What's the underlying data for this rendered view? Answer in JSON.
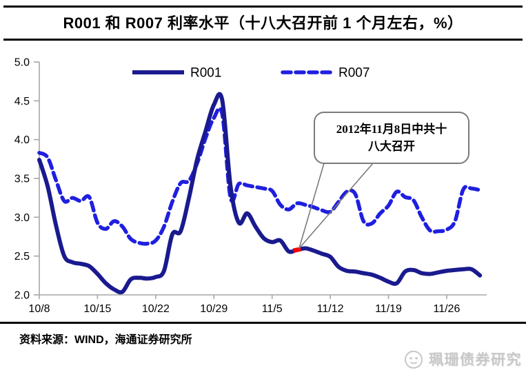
{
  "title": "R001 和 R007 利率水平（十八大召开前 1 个月左右，%）",
  "source_note": "资料来源：WIND，海通证券研究所",
  "watermark_text": "珮珊债券研究",
  "colors": {
    "r001_line": "#1a1a8f",
    "r007_line": "#1f1fe0",
    "highlight_red": "#ff0000",
    "axis_gray": "#a6a6a6",
    "callout_gray": "#7a7a7a",
    "watermark_gray": "#c8c8c8"
  },
  "chart_data": {
    "type": "line",
    "title": "R001 和 R007 利率水平（十八大召开前 1 个月左右，%）",
    "xlabel": "",
    "ylabel": "",
    "ylim": [
      2.0,
      5.0
    ],
    "y_ticks": [
      2.0,
      2.5,
      3.0,
      3.5,
      4.0,
      4.5,
      5.0
    ],
    "y_tick_labels": [
      "2.0",
      "2.5",
      "3.0",
      "3.5",
      "4.0",
      "4.5",
      "5.0"
    ],
    "x_tick_labels": [
      "10/8",
      "10/15",
      "10/22",
      "10/29",
      "11/5",
      "11/12",
      "11/19",
      "11/26"
    ],
    "x_tick_days": [
      0,
      7,
      14,
      21,
      28,
      35,
      42,
      49
    ],
    "grid": false,
    "legend_position": "top-inside",
    "dates": [
      "10/8",
      "10/9",
      "10/10",
      "10/11",
      "10/12",
      "10/13",
      "10/14",
      "10/15",
      "10/16",
      "10/17",
      "10/18",
      "10/19",
      "10/20",
      "10/21",
      "10/22",
      "10/23",
      "10/24",
      "10/25",
      "10/26",
      "10/27",
      "10/28",
      "10/29",
      "10/30",
      "10/31",
      "11/1",
      "11/2",
      "11/3",
      "11/4",
      "11/5",
      "11/6",
      "11/7",
      "11/8",
      "11/9",
      "11/10",
      "11/11",
      "11/12",
      "11/13",
      "11/14",
      "11/15",
      "11/16",
      "11/17",
      "11/18",
      "11/19",
      "11/20",
      "11/21",
      "11/22",
      "11/23",
      "11/24",
      "11/25",
      "11/26",
      "11/27",
      "11/28",
      "11/29",
      "11/30"
    ],
    "series": [
      {
        "name": "R001",
        "style": "solid",
        "color": "#1a1a8f",
        "values": [
          3.74,
          3.4,
          2.9,
          2.5,
          2.42,
          2.4,
          2.37,
          2.27,
          2.15,
          2.07,
          2.04,
          2.2,
          2.22,
          2.21,
          2.23,
          2.31,
          2.78,
          2.82,
          3.25,
          3.75,
          4.11,
          4.45,
          4.51,
          3.4,
          2.93,
          3.05,
          2.88,
          2.73,
          2.68,
          2.7,
          2.56,
          2.58,
          2.6,
          2.57,
          2.53,
          2.49,
          2.36,
          2.31,
          2.3,
          2.28,
          2.26,
          2.22,
          2.17,
          2.15,
          2.3,
          2.32,
          2.28,
          2.27,
          2.29,
          2.31,
          2.32,
          2.33,
          2.33,
          2.25
        ]
      },
      {
        "name": "R007",
        "style": "dashed",
        "color": "#1f1fe0",
        "values": [
          3.83,
          3.77,
          3.48,
          3.21,
          3.25,
          3.21,
          3.26,
          2.93,
          2.85,
          2.95,
          2.88,
          2.72,
          2.67,
          2.66,
          2.7,
          2.88,
          3.2,
          3.44,
          3.47,
          3.7,
          4.02,
          4.28,
          4.33,
          3.25,
          3.43,
          3.41,
          3.39,
          3.37,
          3.34,
          3.16,
          3.1,
          3.18,
          3.16,
          3.13,
          3.09,
          3.07,
          3.2,
          3.33,
          3.3,
          2.95,
          2.92,
          3.05,
          3.15,
          3.33,
          3.26,
          3.22,
          3.0,
          2.83,
          2.82,
          2.84,
          2.95,
          3.36,
          3.37,
          3.35
        ]
      }
    ],
    "highlight": {
      "series": "R001",
      "date": "11/8",
      "value": 2.58,
      "color": "#ff0000"
    },
    "annotation": {
      "lines": [
        "2012年11月8日中共十",
        "八大召开"
      ],
      "text": "2012年11月8日中共十八大召开",
      "points_to_date": "11/8"
    }
  }
}
